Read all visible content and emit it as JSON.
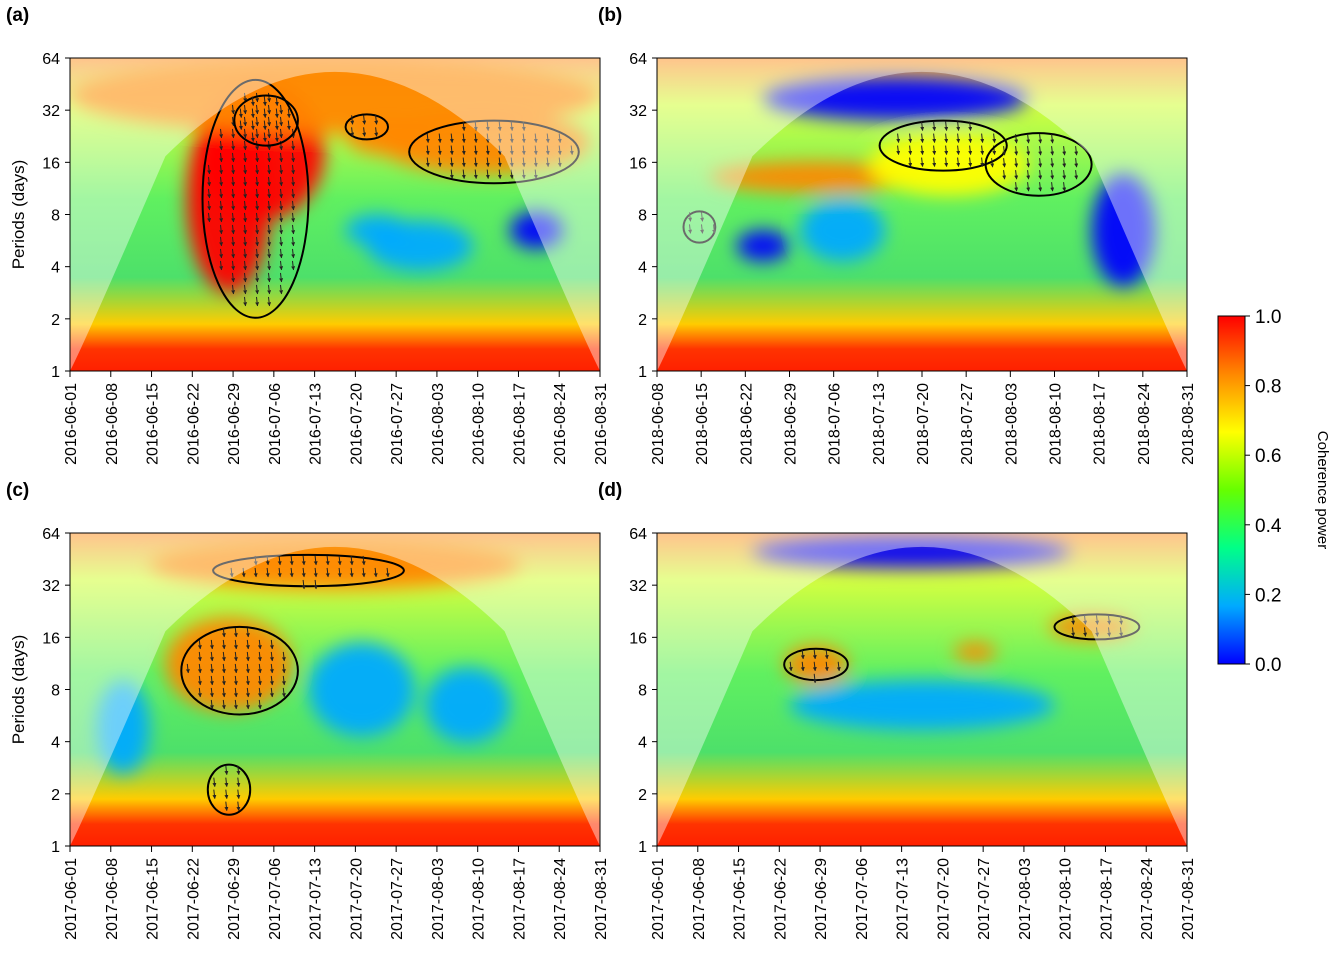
{
  "chart_data": [
    {
      "type": "heatmap",
      "panel_label": "(a)",
      "ylabel": "Periods (days)",
      "y_scale": "log2",
      "ylim": [
        1,
        64
      ],
      "y_ticks": [
        "1",
        "2",
        "4",
        "8",
        "16",
        "32",
        "64"
      ],
      "x_ticks": [
        "2016-06-01",
        "2016-06-08",
        "2016-06-15",
        "2016-06-22",
        "2016-06-29",
        "2016-07-06",
        "2016-07-13",
        "2016-07-20",
        "2016-07-27",
        "2016-08-03",
        "2016-08-10",
        "2016-08-17",
        "2016-08-24",
        "2016-08-31"
      ],
      "background": "green-yellow with blue patches",
      "blobs": [
        {
          "x": 0.36,
          "y": 0.3,
          "rx": 0.12,
          "ry": 0.22,
          "level": 0.95
        },
        {
          "x": 0.3,
          "y": 0.45,
          "rx": 0.08,
          "ry": 0.3,
          "level": 0.95
        },
        {
          "x": 0.5,
          "y": 0.12,
          "rx": 0.5,
          "ry": 0.12,
          "level": 0.9
        },
        {
          "x": 0.78,
          "y": 0.27,
          "rx": 0.2,
          "ry": 0.1,
          "level": 0.85
        },
        {
          "x": 0.6,
          "y": 0.25,
          "rx": 0.08,
          "ry": 0.06,
          "level": 0.8
        },
        {
          "x": 0.66,
          "y": 0.6,
          "rx": 0.1,
          "ry": 0.08,
          "level": 0.1
        },
        {
          "x": 0.58,
          "y": 0.55,
          "rx": 0.06,
          "ry": 0.05,
          "level": 0.1
        },
        {
          "x": 0.88,
          "y": 0.55,
          "rx": 0.05,
          "ry": 0.06,
          "level": 0.05
        }
      ],
      "sig_regions": [
        {
          "x": 0.35,
          "y": 0.45,
          "rx": 0.1,
          "ry": 0.38
        },
        {
          "x": 0.37,
          "y": 0.2,
          "rx": 0.06,
          "ry": 0.08
        },
        {
          "x": 0.8,
          "y": 0.3,
          "rx": 0.16,
          "ry": 0.1
        },
        {
          "x": 0.56,
          "y": 0.22,
          "rx": 0.04,
          "ry": 0.04
        }
      ]
    },
    {
      "type": "heatmap",
      "panel_label": "(b)",
      "ylabel": "",
      "y_scale": "log2",
      "ylim": [
        1,
        64
      ],
      "y_ticks": [
        "1",
        "2",
        "4",
        "8",
        "16",
        "32",
        "64"
      ],
      "x_ticks": [
        "2018-06-08",
        "2018-06-15",
        "2018-06-22",
        "2018-06-29",
        "2018-07-06",
        "2018-07-13",
        "2018-07-20",
        "2018-07-27",
        "2018-08-03",
        "2018-08-10",
        "2018-08-17",
        "2018-08-24",
        "2018-08-31"
      ],
      "background": "green-yellow with blue patches",
      "blobs": [
        {
          "x": 0.45,
          "y": 0.13,
          "rx": 0.25,
          "ry": 0.07,
          "level": 0.05
        },
        {
          "x": 0.3,
          "y": 0.38,
          "rx": 0.2,
          "ry": 0.05,
          "level": 0.85
        },
        {
          "x": 0.55,
          "y": 0.34,
          "rx": 0.15,
          "ry": 0.1,
          "level": 0.7
        },
        {
          "x": 0.88,
          "y": 0.55,
          "rx": 0.06,
          "ry": 0.18,
          "level": 0.05
        },
        {
          "x": 0.35,
          "y": 0.55,
          "rx": 0.08,
          "ry": 0.1,
          "level": 0.1
        },
        {
          "x": 0.2,
          "y": 0.6,
          "rx": 0.05,
          "ry": 0.05,
          "level": 0.05
        }
      ],
      "sig_regions": [
        {
          "x": 0.54,
          "y": 0.28,
          "rx": 0.12,
          "ry": 0.08
        },
        {
          "x": 0.72,
          "y": 0.34,
          "rx": 0.1,
          "ry": 0.1
        },
        {
          "x": 0.08,
          "y": 0.54,
          "rx": 0.03,
          "ry": 0.05
        }
      ]
    },
    {
      "type": "heatmap",
      "panel_label": "(c)",
      "ylabel": "Periods (days)",
      "y_scale": "log2",
      "ylim": [
        1,
        64
      ],
      "y_ticks": [
        "1",
        "2",
        "4",
        "8",
        "16",
        "32",
        "64"
      ],
      "x_ticks": [
        "2017-06-01",
        "2017-06-08",
        "2017-06-15",
        "2017-06-22",
        "2017-06-29",
        "2017-07-06",
        "2017-07-13",
        "2017-07-20",
        "2017-07-27",
        "2017-08-03",
        "2017-08-10",
        "2017-08-17",
        "2017-08-24",
        "2017-08-31"
      ],
      "background": "green-yellow with blue patches",
      "blobs": [
        {
          "x": 0.5,
          "y": 0.1,
          "rx": 0.35,
          "ry": 0.08,
          "level": 0.85
        },
        {
          "x": 0.3,
          "y": 0.42,
          "rx": 0.12,
          "ry": 0.15,
          "level": 0.85
        },
        {
          "x": 0.55,
          "y": 0.5,
          "rx": 0.1,
          "ry": 0.15,
          "level": 0.1
        },
        {
          "x": 0.75,
          "y": 0.55,
          "rx": 0.08,
          "ry": 0.12,
          "level": 0.1
        },
        {
          "x": 0.1,
          "y": 0.62,
          "rx": 0.05,
          "ry": 0.15,
          "level": 0.1
        }
      ],
      "sig_regions": [
        {
          "x": 0.32,
          "y": 0.44,
          "rx": 0.11,
          "ry": 0.14
        },
        {
          "x": 0.45,
          "y": 0.12,
          "rx": 0.18,
          "ry": 0.05
        },
        {
          "x": 0.3,
          "y": 0.82,
          "rx": 0.04,
          "ry": 0.08
        }
      ]
    },
    {
      "type": "heatmap",
      "panel_label": "(d)",
      "ylabel": "",
      "y_scale": "log2",
      "ylim": [
        1,
        64
      ],
      "y_ticks": [
        "1",
        "2",
        "4",
        "8",
        "16",
        "32",
        "64"
      ],
      "x_ticks": [
        "2017-06-01",
        "2017-06-08",
        "2017-06-15",
        "2017-06-22",
        "2017-06-29",
        "2017-07-06",
        "2017-07-13",
        "2017-07-20",
        "2017-07-27",
        "2017-08-03",
        "2017-08-10",
        "2017-08-17",
        "2017-08-24",
        "2017-08-31"
      ],
      "background": "green-yellow with blue patches",
      "blobs": [
        {
          "x": 0.48,
          "y": 0.06,
          "rx": 0.3,
          "ry": 0.05,
          "level": 0.05
        },
        {
          "x": 0.5,
          "y": 0.55,
          "rx": 0.25,
          "ry": 0.08,
          "level": 0.1
        },
        {
          "x": 0.82,
          "y": 0.3,
          "rx": 0.08,
          "ry": 0.04,
          "level": 0.85
        },
        {
          "x": 0.3,
          "y": 0.42,
          "rx": 0.06,
          "ry": 0.06,
          "level": 0.85
        },
        {
          "x": 0.6,
          "y": 0.38,
          "rx": 0.04,
          "ry": 0.03,
          "level": 0.8
        }
      ],
      "sig_regions": [
        {
          "x": 0.83,
          "y": 0.3,
          "rx": 0.08,
          "ry": 0.04
        },
        {
          "x": 0.3,
          "y": 0.42,
          "rx": 0.06,
          "ry": 0.05
        }
      ]
    }
  ],
  "colorbar": {
    "title": "Coherence power",
    "ticks": [
      "0.0",
      "0.2",
      "0.4",
      "0.6",
      "0.8",
      "1.0"
    ],
    "colors": [
      "#0000ff",
      "#00aaff",
      "#00ff88",
      "#66ff00",
      "#ffff00",
      "#ff8800",
      "#ff0000"
    ]
  }
}
